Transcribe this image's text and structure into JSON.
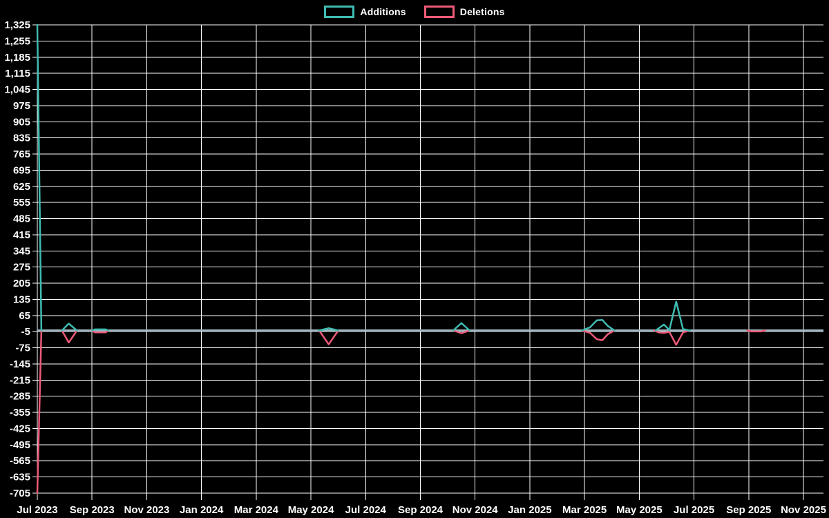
{
  "chart_data": {
    "type": "line",
    "title": "",
    "description": "Weekly additions and deletions over time on a black background; both series sit at zero except isolated spikes.",
    "legend": {
      "position": "top-center",
      "items": [
        {
          "label": "Additions",
          "color": "#3fbcb2"
        },
        {
          "label": "Deletions",
          "color": "#ef5a78"
        }
      ]
    },
    "x_axis": {
      "tick_labels": [
        "Jul 2023",
        "Sep 2023",
        "Nov 2023",
        "Jan 2024",
        "Mar 2024",
        "May 2024",
        "Jul 2024",
        "Sep 2024",
        "Nov 2024",
        "Jan 2025",
        "Mar 2025",
        "May 2025",
        "Jul 2025",
        "Sep 2025",
        "Nov 2025"
      ],
      "tick_interval_months": 2,
      "range_months": [
        0,
        28.75
      ]
    },
    "y_axis": {
      "min": -705,
      "max": 1325,
      "step": 70,
      "tick_labels": [
        "1,325",
        "1,255",
        "1,185",
        "1,115",
        "1,045",
        "975",
        "905",
        "835",
        "765",
        "695",
        "625",
        "555",
        "485",
        "415",
        "345",
        "275",
        "205",
        "135",
        "65",
        "-5",
        "-75",
        "-145",
        "-215",
        "-285",
        "-355",
        "-425",
        "-495",
        "-565",
        "-635",
        "-705"
      ]
    },
    "grid": true,
    "colors": {
      "background": "#000000",
      "grid": "#ffffff",
      "text": "#ffffff",
      "baseline": "#a0b8c2"
    },
    "baseline_value": 0,
    "series": [
      {
        "name": "Additions",
        "color": "#3fbcb2",
        "points_t_months_value": [
          [
            0,
            1325
          ],
          [
            0.15,
            0
          ],
          [
            0.9,
            0
          ],
          [
            1.15,
            30
          ],
          [
            1.45,
            0
          ],
          [
            2.0,
            0
          ],
          [
            2.1,
            5
          ],
          [
            2.5,
            5
          ],
          [
            2.6,
            0
          ],
          [
            10.3,
            0
          ],
          [
            10.65,
            10
          ],
          [
            11.0,
            0
          ],
          [
            15.2,
            0
          ],
          [
            15.5,
            32
          ],
          [
            15.8,
            0
          ],
          [
            19.9,
            0
          ],
          [
            20.2,
            14
          ],
          [
            20.45,
            44
          ],
          [
            20.65,
            46
          ],
          [
            20.85,
            20
          ],
          [
            21.1,
            0
          ],
          [
            22.6,
            0
          ],
          [
            22.9,
            26
          ],
          [
            23.1,
            2
          ],
          [
            23.35,
            125
          ],
          [
            23.6,
            6
          ],
          [
            23.85,
            0
          ],
          [
            28.75,
            0
          ]
        ]
      },
      {
        "name": "Deletions",
        "color": "#ef5a78",
        "points_t_months_value": [
          [
            0,
            -705
          ],
          [
            0.15,
            0
          ],
          [
            0.9,
            0
          ],
          [
            1.15,
            -52
          ],
          [
            1.45,
            0
          ],
          [
            2.0,
            0
          ],
          [
            2.1,
            -8
          ],
          [
            2.5,
            -8
          ],
          [
            2.6,
            0
          ],
          [
            10.3,
            0
          ],
          [
            10.65,
            -60
          ],
          [
            11.0,
            0
          ],
          [
            15.2,
            0
          ],
          [
            15.5,
            -12
          ],
          [
            15.8,
            0
          ],
          [
            19.9,
            0
          ],
          [
            20.2,
            -10
          ],
          [
            20.45,
            -38
          ],
          [
            20.65,
            -42
          ],
          [
            20.85,
            -16
          ],
          [
            21.1,
            0
          ],
          [
            22.55,
            0
          ],
          [
            22.7,
            -8
          ],
          [
            22.9,
            -10
          ],
          [
            23.1,
            -6
          ],
          [
            23.35,
            -62
          ],
          [
            23.6,
            -8
          ],
          [
            23.85,
            0
          ],
          [
            25.95,
            0
          ],
          [
            26.1,
            -4
          ],
          [
            26.45,
            -4
          ],
          [
            26.6,
            0
          ],
          [
            28.75,
            0
          ]
        ]
      }
    ]
  }
}
